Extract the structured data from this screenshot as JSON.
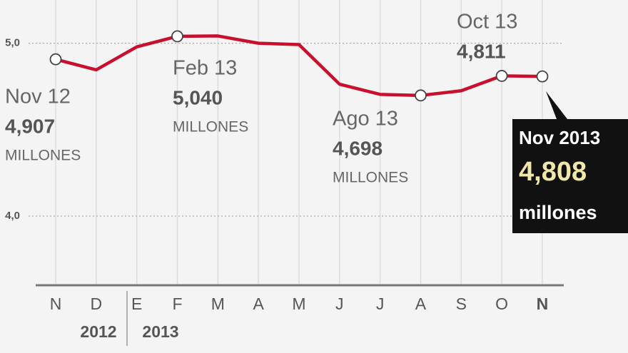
{
  "chart_data": {
    "type": "line",
    "categories": [
      "N",
      "D",
      "E",
      "F",
      "M",
      "A",
      "M",
      "J",
      "J",
      "A",
      "S",
      "O",
      "N"
    ],
    "year_labels": [
      "2012",
      "2013"
    ],
    "series": [
      {
        "color": "#c8102e",
        "values": [
          4.907,
          4.846,
          4.979,
          5.04,
          5.042,
          5.0,
          4.992,
          4.763,
          4.704,
          4.698,
          4.725,
          4.811,
          4.808
        ],
        "value_labels": [
          "4,907",
          null,
          null,
          "5,040",
          null,
          null,
          null,
          null,
          null,
          "4,698",
          null,
          "4,811",
          "4,808"
        ]
      }
    ],
    "ylim": [
      3.6,
      5.25
    ],
    "yticks": [
      {
        "value": 5,
        "label": "5,0"
      },
      {
        "value": 4,
        "label": "4,0"
      }
    ],
    "grid": true,
    "annotations": [
      {
        "title": "Nov 12",
        "unit": "MILLONES"
      },
      {
        "title": "Feb 13",
        "unit": "MILLONES"
      },
      {
        "title": "Ago 13",
        "unit": "MILLONES"
      },
      {
        "title": "Oct 13"
      }
    ],
    "tooltip": {
      "title": "Nov 2013",
      "unit": "millones"
    }
  }
}
